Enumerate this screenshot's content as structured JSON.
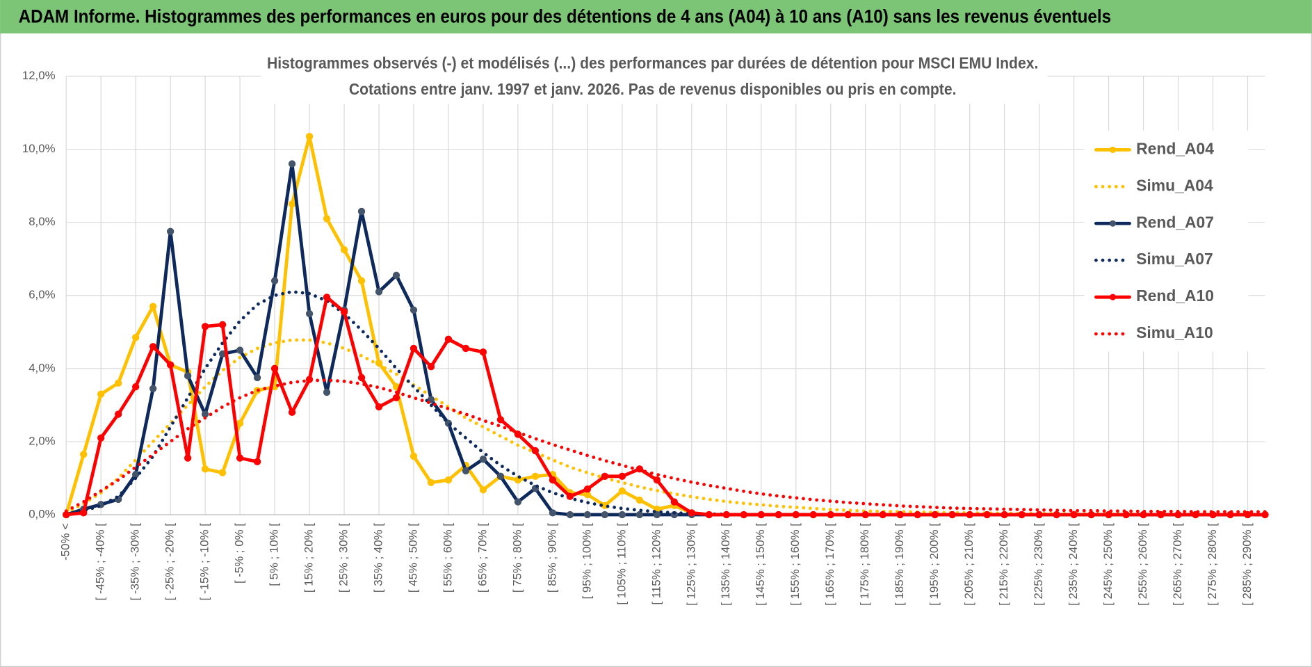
{
  "header": {
    "title": "ADAM Informe. Histogrammes des performances en euros pour des détentions de 4 ans (A04) à 10 ans (A10) sans les revenus éventuels"
  },
  "chart_data": {
    "type": "line",
    "title": "Histogrammes observés (-) et modélisés (...) des performances par durées de détention pour MSCI EMU Index.",
    "subtitle": "Cotations entre janv. 1997 et janv. 2026. Pas de revenus disponibles ou pris en compte.",
    "categories": [
      "-50% <",
      null,
      "[ -45% ; -40% [",
      null,
      "[ -35% ; -30% [",
      null,
      "[ -25% ; -20% [",
      null,
      "[ -15% ; -10% [",
      null,
      "[ -5% ; 0% [",
      null,
      "[ 5% ; 10% [",
      null,
      "[ 15% ; 20% [",
      null,
      "[ 25% ; 30% [",
      null,
      "[ 35% ; 40% [",
      null,
      "[ 45% ; 50% [",
      null,
      "[ 55% ; 60% [",
      null,
      "[ 65% ; 70% [",
      null,
      "[ 75% ; 80% [",
      null,
      "[ 85% ; 90% [",
      null,
      "[ 95% ; 100% [",
      null,
      "[ 105% ; 110% [",
      null,
      "[ 115% ; 120% [",
      null,
      "[ 125% ; 130% [",
      null,
      "[ 135% ; 140% [",
      null,
      "[ 145% ; 150% [",
      null,
      "[ 155% ; 160% [",
      null,
      "[ 165% ; 170% [",
      null,
      "[ 175% ; 180% [",
      null,
      "[ 185% ; 190% [",
      null,
      "[ 195% ; 200% [",
      null,
      "[ 205% ; 210% [",
      null,
      "[ 215% ; 220% [",
      null,
      "[ 225% ; 230% [",
      null,
      "[ 235% ; 240% [",
      null,
      "[ 245% ; 250% [",
      null,
      "[ 255% ; 260% [",
      null,
      "[ 265% ; 270% [",
      null,
      "[ 275% ; 280% [",
      null,
      "[ 285% ; 290% [",
      null
    ],
    "series": [
      {
        "name": "Rend_A04",
        "color": "#ffc000",
        "line_style": "solid",
        "markers": true,
        "values": [
          0,
          1.65,
          3.3,
          3.6,
          4.85,
          5.7,
          4.1,
          3.9,
          1.25,
          1.15,
          2.5,
          3.4,
          3.5,
          8.5,
          10.35,
          8.1,
          7.25,
          6.4,
          4.15,
          3.5,
          1.6,
          0.88,
          0.95,
          1.35,
          0.68,
          1.05,
          0.95,
          1.05,
          1.1,
          0.6,
          0.55,
          0.25,
          0.65,
          0.4,
          0.15,
          0.25,
          0.05,
          0,
          0,
          0,
          0,
          0,
          0,
          0,
          0,
          0,
          0,
          0,
          0,
          0,
          0,
          0,
          0,
          0,
          0,
          0,
          0,
          0,
          0,
          0,
          0,
          0,
          0,
          0,
          0,
          0,
          0,
          0,
          0,
          0
        ]
      },
      {
        "name": "Simu_A04",
        "color": "#ffc000",
        "line_style": "dotted",
        "markers": false,
        "values": [
          0.05,
          0.3,
          0.6,
          1.0,
          1.5,
          2.0,
          2.5,
          3.0,
          3.5,
          3.95,
          4.3,
          4.55,
          4.7,
          4.78,
          4.78,
          4.7,
          4.55,
          4.35,
          4.1,
          3.85,
          3.55,
          3.25,
          2.95,
          2.65,
          2.4,
          2.15,
          1.9,
          1.7,
          1.5,
          1.3,
          1.15,
          1.0,
          0.88,
          0.76,
          0.66,
          0.57,
          0.49,
          0.42,
          0.36,
          0.31,
          0.27,
          0.23,
          0.2,
          0.17,
          0.14,
          0.12,
          0.1,
          0.09,
          0.08,
          0.07,
          0.06,
          0.05,
          0.05,
          0.04,
          0.04,
          0.03,
          0.03,
          0.03,
          0.02,
          0.02,
          0.02,
          0.02,
          0.01,
          0.01,
          0.01,
          0.01,
          0.01,
          0.01,
          0.01,
          0.01
        ]
      },
      {
        "name": "Rend_A07",
        "color": "#0e2a5c",
        "line_style": "solid",
        "markers": true,
        "values": [
          0,
          0.15,
          0.28,
          0.42,
          1.1,
          3.45,
          7.75,
          3.8,
          2.75,
          4.4,
          4.5,
          3.75,
          6.4,
          9.6,
          5.5,
          3.35,
          5.6,
          8.3,
          6.1,
          6.55,
          5.6,
          3.15,
          2.5,
          1.2,
          1.52,
          1.05,
          0.35,
          0.72,
          0.05,
          0,
          0,
          0,
          0,
          0,
          0,
          0,
          0,
          0,
          0,
          0,
          0,
          0,
          0,
          0,
          0,
          0,
          0,
          0,
          0,
          0,
          0,
          0,
          0,
          0,
          0,
          0,
          0,
          0,
          0,
          0,
          0,
          0,
          0,
          0,
          0,
          0,
          0,
          0,
          0,
          0
        ]
      },
      {
        "name": "Simu_A07",
        "color": "#0e2a5c",
        "line_style": "dotted",
        "markers": false,
        "values": [
          0.02,
          0.1,
          0.25,
          0.5,
          1.0,
          1.6,
          2.4,
          3.2,
          4.0,
          4.7,
          5.3,
          5.75,
          6.0,
          6.1,
          6.05,
          5.85,
          5.5,
          5.05,
          4.55,
          4.0,
          3.5,
          3.0,
          2.5,
          2.1,
          1.7,
          1.35,
          1.05,
          0.8,
          0.6,
          0.45,
          0.33,
          0.24,
          0.17,
          0.12,
          0.08,
          0.05,
          0.03,
          0.02,
          0.01,
          0,
          0,
          0,
          0,
          0,
          0,
          0,
          0,
          0,
          0,
          0,
          0,
          0,
          0,
          0,
          0,
          0,
          0,
          0,
          0,
          0,
          0,
          0,
          0,
          0,
          0,
          0,
          0,
          0,
          0,
          0
        ]
      },
      {
        "name": "Rend_A10",
        "color": "#ff0000",
        "line_style": "solid",
        "markers": true,
        "values": [
          0,
          0.05,
          2.1,
          2.75,
          3.5,
          4.6,
          4.1,
          1.55,
          5.15,
          5.2,
          1.55,
          1.45,
          4.0,
          2.8,
          3.7,
          5.95,
          5.55,
          3.75,
          2.95,
          3.2,
          4.55,
          4.05,
          4.8,
          4.55,
          4.45,
          2.6,
          2.2,
          1.75,
          0.95,
          0.5,
          0.7,
          1.05,
          1.05,
          1.25,
          0.95,
          0.35,
          0.05,
          0,
          0,
          0,
          0,
          0,
          0,
          0,
          0,
          0,
          0,
          0,
          0,
          0,
          0,
          0,
          0,
          0,
          0,
          0,
          0,
          0,
          0,
          0,
          0,
          0,
          0,
          0,
          0,
          0,
          0,
          0,
          0,
          0
        ]
      },
      {
        "name": "Simu_A10",
        "color": "#ff0000",
        "line_style": "dotted",
        "markers": false,
        "values": [
          0.1,
          0.35,
          0.65,
          0.95,
          1.3,
          1.65,
          2.0,
          2.35,
          2.65,
          2.95,
          3.2,
          3.4,
          3.52,
          3.62,
          3.67,
          3.68,
          3.65,
          3.58,
          3.48,
          3.35,
          3.2,
          3.05,
          2.9,
          2.75,
          2.58,
          2.42,
          2.25,
          2.08,
          1.92,
          1.77,
          1.62,
          1.48,
          1.35,
          1.22,
          1.1,
          0.99,
          0.89,
          0.8,
          0.72,
          0.64,
          0.57,
          0.51,
          0.46,
          0.41,
          0.37,
          0.33,
          0.3,
          0.27,
          0.24,
          0.22,
          0.2,
          0.18,
          0.17,
          0.16,
          0.15,
          0.14,
          0.13,
          0.12,
          0.11,
          0.11,
          0.1,
          0.1,
          0.09,
          0.09,
          0.09,
          0.08,
          0.08,
          0.08,
          0.08,
          0.08
        ]
      }
    ],
    "ylim": [
      0,
      12
    ],
    "yticks": [
      {
        "value": 0,
        "label": "0,0%"
      },
      {
        "value": 2,
        "label": "2,0%"
      },
      {
        "value": 4,
        "label": "4,0%"
      },
      {
        "value": 6,
        "label": "6,0%"
      },
      {
        "value": 8,
        "label": "8,0%"
      },
      {
        "value": 10,
        "label": "10,0%"
      },
      {
        "value": 12,
        "label": "12,0%"
      }
    ],
    "grid": true,
    "legend": "right"
  }
}
